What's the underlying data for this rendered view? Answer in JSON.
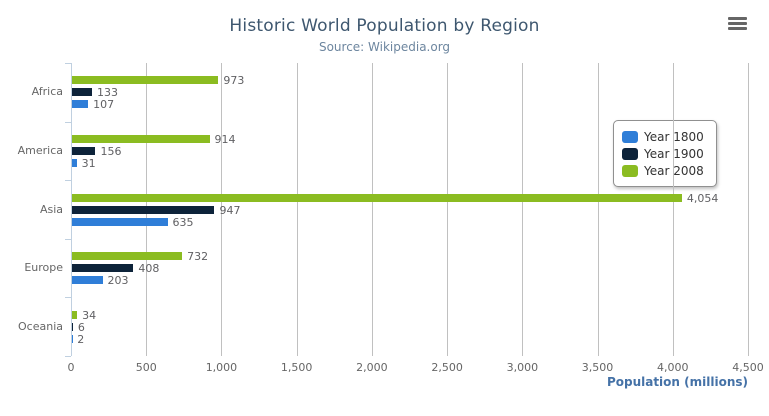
{
  "chart": {
    "title": "Historic World Population by Region",
    "subtitle": "Source: Wikipedia.org",
    "xaxis_title": "Population (millions)",
    "menu_icon": "hamburger-menu-icon"
  },
  "legend": {
    "position": "right",
    "items": [
      {
        "label": "Year 1800",
        "color": "#2f7ed8"
      },
      {
        "label": "Year 1900",
        "color": "#0d233a"
      },
      {
        "label": "Year 2008",
        "color": "#8bbc21"
      }
    ]
  },
  "chart_data": {
    "type": "bar",
    "orientation": "horizontal",
    "title": "Historic World Population by Region",
    "subtitle": "Source: Wikipedia.org",
    "xlabel": "Population (millions)",
    "ylabel": "",
    "categories": [
      "Africa",
      "America",
      "Asia",
      "Europe",
      "Oceania"
    ],
    "series": [
      {
        "name": "Year 1800",
        "color": "#2f7ed8",
        "values": [
          107,
          31,
          635,
          203,
          2
        ]
      },
      {
        "name": "Year 1900",
        "color": "#0d233a",
        "values": [
          133,
          156,
          947,
          408,
          6
        ]
      },
      {
        "name": "Year 2008",
        "color": "#8bbc21",
        "values": [
          973,
          914,
          4054,
          732,
          34
        ]
      }
    ],
    "bar_order_top_to_bottom": [
      "Year 2008",
      "Year 1900",
      "Year 1800"
    ],
    "data_labels": [
      "973",
      "133",
      "107",
      "914",
      "156",
      "31",
      "4,054",
      "947",
      "635",
      "732",
      "408",
      "203",
      "34",
      "6",
      "2"
    ],
    "xlim": [
      0,
      4500
    ],
    "xticks": [
      0,
      500,
      1000,
      1500,
      2000,
      2500,
      3000,
      3500,
      4000,
      4500
    ],
    "xtick_labels": [
      "0",
      "500",
      "1,000",
      "1,500",
      "2,000",
      "2,500",
      "3,000",
      "3,500",
      "4,000",
      "4,500"
    ],
    "grid": true,
    "legend_position": "right",
    "colors": {
      "grid": "#C0C0C0",
      "axis_line": "#C0D0E0",
      "tick_label": "#666666",
      "data_label": "#606063",
      "title": "#3E576F",
      "subtitle": "#6D869F",
      "axis_title": "#4572A7"
    }
  }
}
